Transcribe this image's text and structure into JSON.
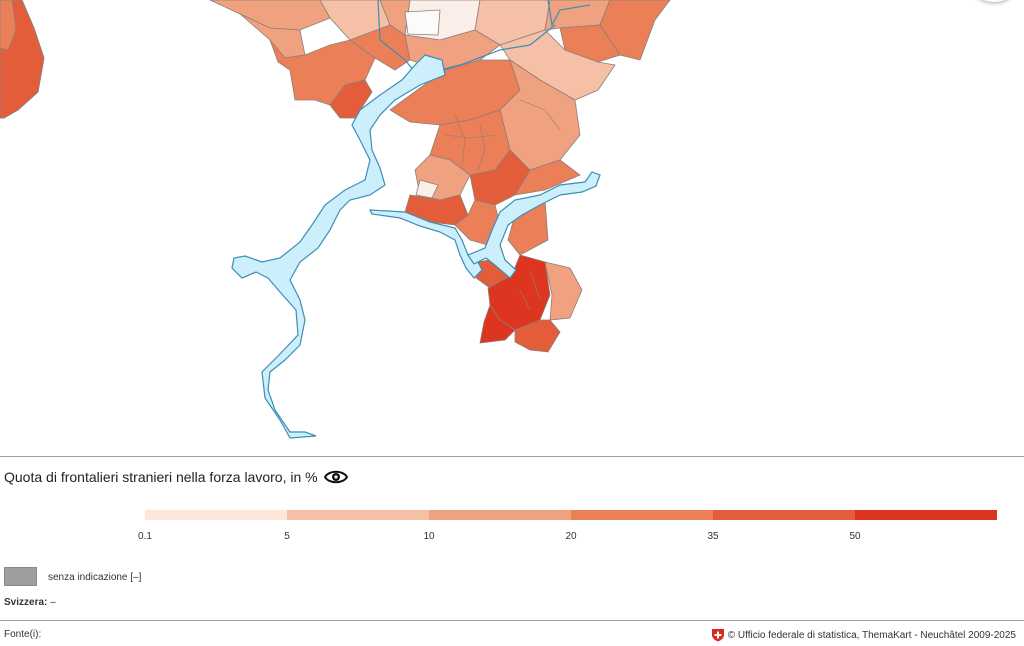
{
  "legend": {
    "title": "Quota di frontalieri stranieri nella forza lavoro, in %",
    "tick_labels": [
      "0.1",
      "5",
      "10",
      "20",
      "35",
      "50"
    ],
    "class_colors": [
      "#fde6da",
      "#f5c0a5",
      "#f0a17f",
      "#ea7f58",
      "#e45d3a",
      "#de3520"
    ],
    "no_data_label": "senza indicazione [–]",
    "no_data_color": "#9e9e9e",
    "eye_icon": "eye-icon"
  },
  "national_value": {
    "label": "Svizzera:",
    "value": "–"
  },
  "footer": {
    "source_label": "Fonte(i):",
    "credit": "© Ufficio federale di statistica, ThemaKart - Neuchâtel 2009-2025",
    "flag_icon": "swiss-flag-icon"
  },
  "map": {
    "lake_color": "#cdeefb",
    "lake_stroke": "#3a8fb7",
    "border_color": "#8c7f7a"
  }
}
